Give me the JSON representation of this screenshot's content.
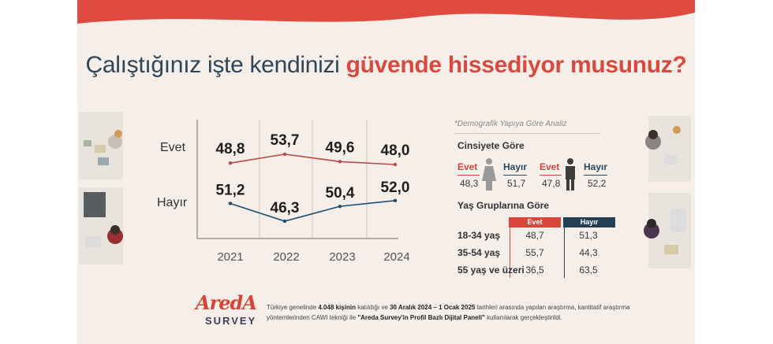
{
  "title": {
    "prefix": "Çalıştığınız işte kendinizi",
    "highlight": "güvende hissediyor musunuz?"
  },
  "colors": {
    "band": "#e04b3f",
    "evet": "#b84a44",
    "hayir": "#1e4f6f",
    "bg": "#f6eee9"
  },
  "chart_data": {
    "type": "line",
    "x": [
      "2021",
      "2022",
      "2023",
      "2024"
    ],
    "series": [
      {
        "name": "Evet",
        "values": [
          48.8,
          53.7,
          49.6,
          48.0
        ],
        "labels": [
          "48,8",
          "53,7",
          "49,6",
          "48,0"
        ]
      },
      {
        "name": "Hayır",
        "values": [
          51.2,
          46.3,
          50.4,
          52.0
        ],
        "labels": [
          "51,2",
          "46,3",
          "50,4",
          "52,0"
        ]
      }
    ]
  },
  "demographics": {
    "note": "*Demografik Yapıya Göre Analiz",
    "gender": {
      "title": "Cinsiyete Göre",
      "female": {
        "evet_label": "Evet",
        "evet": "48,3",
        "hayir_label": "Hayır",
        "hayir": "51,7"
      },
      "male": {
        "evet_label": "Evet",
        "evet": "47,8",
        "hayir_label": "Hayır",
        "hayir": "52,2"
      }
    },
    "age": {
      "title": "Yaş Gruplarına Göre",
      "col_evet": "Evet",
      "col_hayir": "Hayır",
      "rows": [
        {
          "label": "18-34 yaş",
          "evet": "48,7",
          "hayir": "51,3"
        },
        {
          "label": "35-54 yaş",
          "evet": "55,7",
          "hayir": "44,3"
        },
        {
          "label": "55 yaş ve üzeri",
          "evet": "36,5",
          "hayir": "63,5"
        }
      ]
    }
  },
  "logo": {
    "top": "AredA",
    "bottom": "SURVEY"
  },
  "footer": {
    "t1": "Türkiye genelinde ",
    "b1": "4.048 kişinin",
    "t2": " katıldığı ve ",
    "b2": "30 Aralık 2024 – 1 Ocak 2025",
    "t3": " tarihleri arasında yapılan araştırma, kantitatif araştırma yöntemlerinden CAWI tekniği ile ",
    "b3": "\"Areda  Survey'in Profil Bazlı Dijital Paneli\"",
    "t4": " kullanılarak gerçekleştirildi."
  }
}
